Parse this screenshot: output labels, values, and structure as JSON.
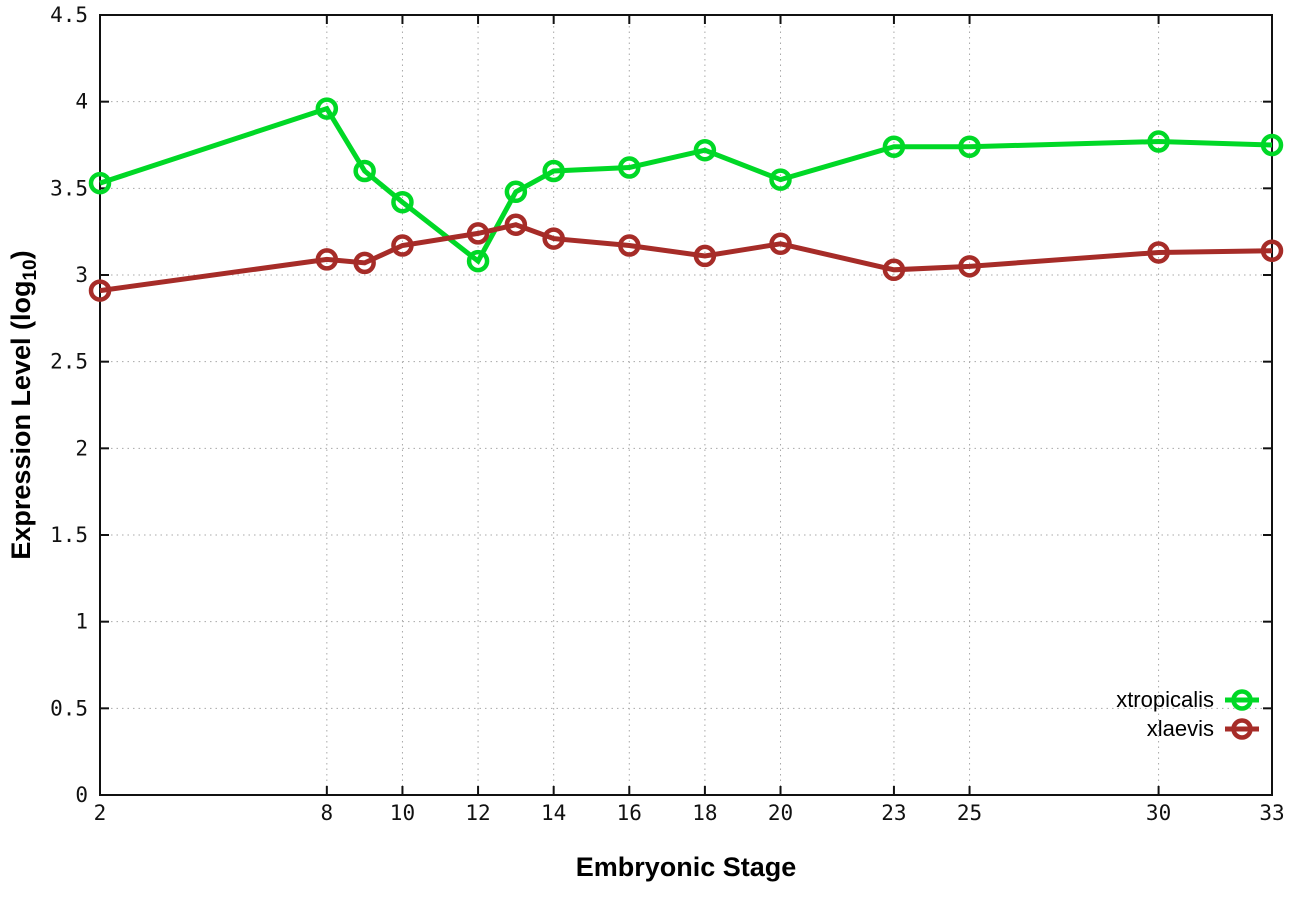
{
  "chart_data": {
    "type": "line",
    "title": "",
    "xlabel": "Embryonic Stage",
    "ylabel_prefix": "Expression Level (log",
    "ylabel_sub": "10",
    "ylabel_suffix": ")",
    "xlim": [
      2,
      33
    ],
    "ylim": [
      0,
      4.5
    ],
    "grid": true,
    "legend_position": "bottom-right",
    "x_tick_values": [
      2,
      8,
      10,
      12,
      14,
      16,
      18,
      20,
      23,
      25,
      30,
      33
    ],
    "x_tick_labels": [
      "2",
      "8",
      "10",
      "12",
      "14",
      "16",
      "18",
      "20",
      "23",
      "25",
      "30",
      "33"
    ],
    "y_tick_values": [
      0,
      0.5,
      1,
      1.5,
      2,
      2.5,
      3,
      3.5,
      4,
      4.5
    ],
    "y_tick_labels": [
      "0",
      "0.5",
      "1",
      "1.5",
      "2",
      "2.5",
      "3",
      "3.5",
      "4",
      "4.5"
    ],
    "x": [
      2,
      8,
      9,
      10,
      12,
      13,
      14,
      16,
      18,
      20,
      23,
      25,
      30,
      33
    ],
    "series": [
      {
        "name": "xtropicalis",
        "color": "#00D826",
        "values": [
          3.53,
          3.96,
          3.6,
          3.42,
          3.08,
          3.48,
          3.6,
          3.62,
          3.72,
          3.55,
          3.74,
          3.74,
          3.77,
          3.75
        ]
      },
      {
        "name": "xlaevis",
        "color": "#A62C28",
        "values": [
          2.91,
          3.09,
          3.07,
          3.17,
          3.24,
          3.29,
          3.21,
          3.17,
          3.11,
          3.18,
          3.03,
          3.05,
          3.13,
          3.14
        ]
      }
    ]
  },
  "colors": {
    "background": "#ffffff",
    "axis": "#111111",
    "grid": "#a8a8a8",
    "tick_text": "#111111"
  }
}
